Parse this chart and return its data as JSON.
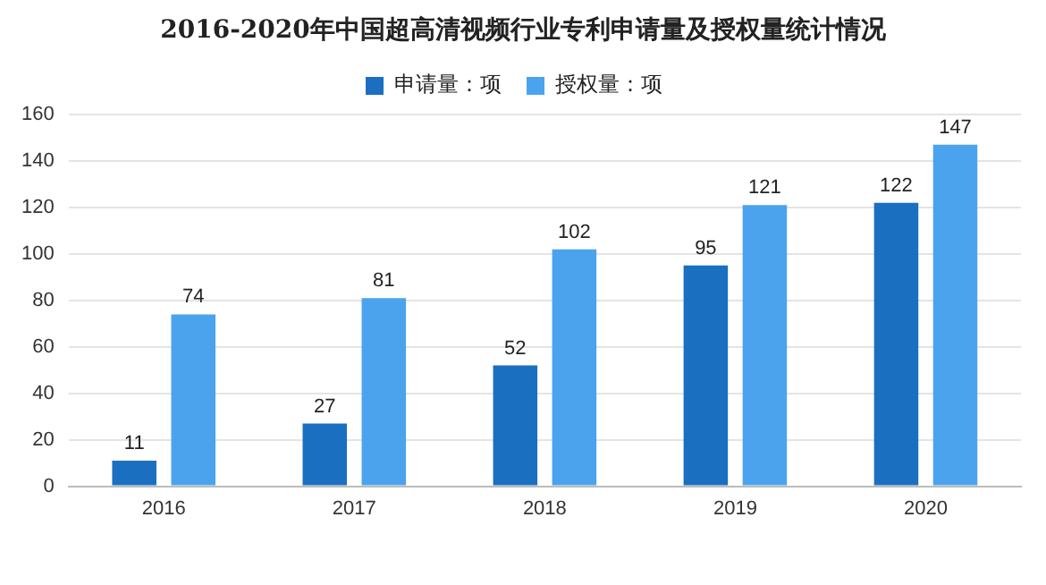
{
  "chart_data": {
    "type": "bar",
    "title": "2016-2020年中国超高清视频行业专利申请量及授权量统计情况",
    "categories": [
      "2016",
      "2017",
      "2018",
      "2019",
      "2020"
    ],
    "series": [
      {
        "name": "申请量：项",
        "color": "#1a6fc0",
        "values": [
          11,
          27,
          52,
          95,
          122
        ]
      },
      {
        "name": "授权量：项",
        "color": "#4ba3ee",
        "values": [
          74,
          81,
          102,
          121,
          147
        ]
      }
    ],
    "ylim": [
      0,
      160
    ],
    "yticks": [
      0,
      20,
      40,
      60,
      80,
      100,
      120,
      140,
      160
    ],
    "grid": "y",
    "legend": "top",
    "data_labels": true
  }
}
